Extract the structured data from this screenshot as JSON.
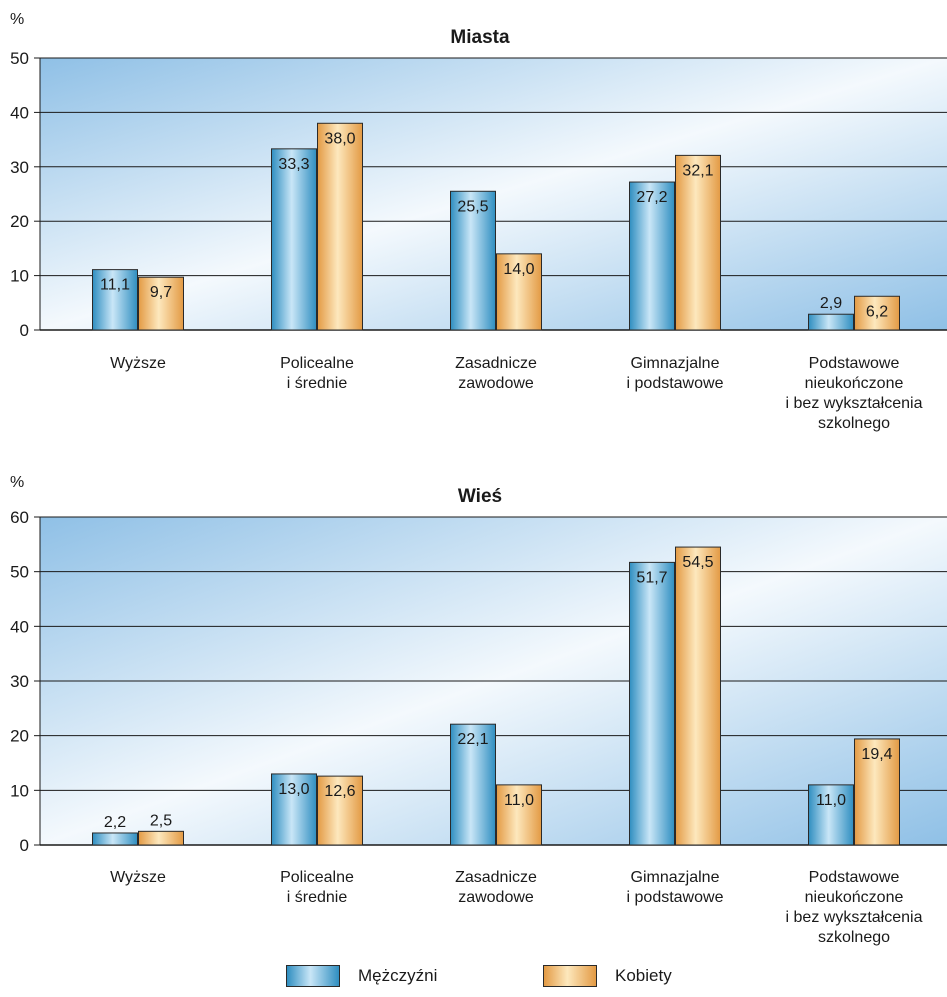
{
  "colors": {
    "men_top": "#2f8ec0",
    "men_mid": "#c9e6f7",
    "women_top": "#e39a44",
    "women_mid": "#fde8bd",
    "panel_edge": "#8fc0e6",
    "panel_mid": "#f4f9fd"
  },
  "chart_data": [
    {
      "type": "bar",
      "title": "Miasta",
      "ylabel": "%",
      "ylim": [
        0,
        50
      ],
      "yticks": [
        "0",
        "10",
        "20",
        "30",
        "40",
        "50"
      ],
      "categories": [
        "Wyższe",
        "Policealne\ni średnie",
        "Zasadnicze\nzawodowe",
        "Gimnazjalne\ni podstawowe",
        "Podstawowe\nnieukończone\ni bez wykształcenia\nszkolnego"
      ],
      "series": [
        {
          "name": "Mężczyźni",
          "values": [
            11.1,
            33.3,
            25.5,
            27.2,
            2.9
          ],
          "labels": [
            "11,1",
            "33,3",
            "25,5",
            "27,2",
            "2,9"
          ]
        },
        {
          "name": "Kobiety",
          "values": [
            9.7,
            38.0,
            14.0,
            32.1,
            6.2
          ],
          "labels": [
            "9,7",
            "38,0",
            "14,0",
            "32,1",
            "6,2"
          ]
        }
      ],
      "grid": true
    },
    {
      "type": "bar",
      "title": "Wieś",
      "ylabel": "%",
      "ylim": [
        0,
        60
      ],
      "yticks": [
        "0",
        "10",
        "20",
        "30",
        "40",
        "50",
        "60"
      ],
      "categories": [
        "Wyższe",
        "Policealne\ni średnie",
        "Zasadnicze\nzawodowe",
        "Gimnazjalne\ni podstawowe",
        "Podstawowe\nnieukończone\ni bez wykształcenia\nszkolnego"
      ],
      "series": [
        {
          "name": "Mężczyźni",
          "values": [
            2.2,
            13.0,
            22.1,
            51.7,
            11.0
          ],
          "labels": [
            "2,2",
            "13,0",
            "22,1",
            "51,7",
            "11,0"
          ]
        },
        {
          "name": "Kobiety",
          "values": [
            2.5,
            12.6,
            11.0,
            54.5,
            19.4
          ],
          "labels": [
            "2,5",
            "12,6",
            "11,0",
            "54,5",
            "19,4"
          ]
        }
      ],
      "grid": true
    }
  ],
  "legend": {
    "men": "Mężczyźni",
    "women": "Kobiety"
  }
}
